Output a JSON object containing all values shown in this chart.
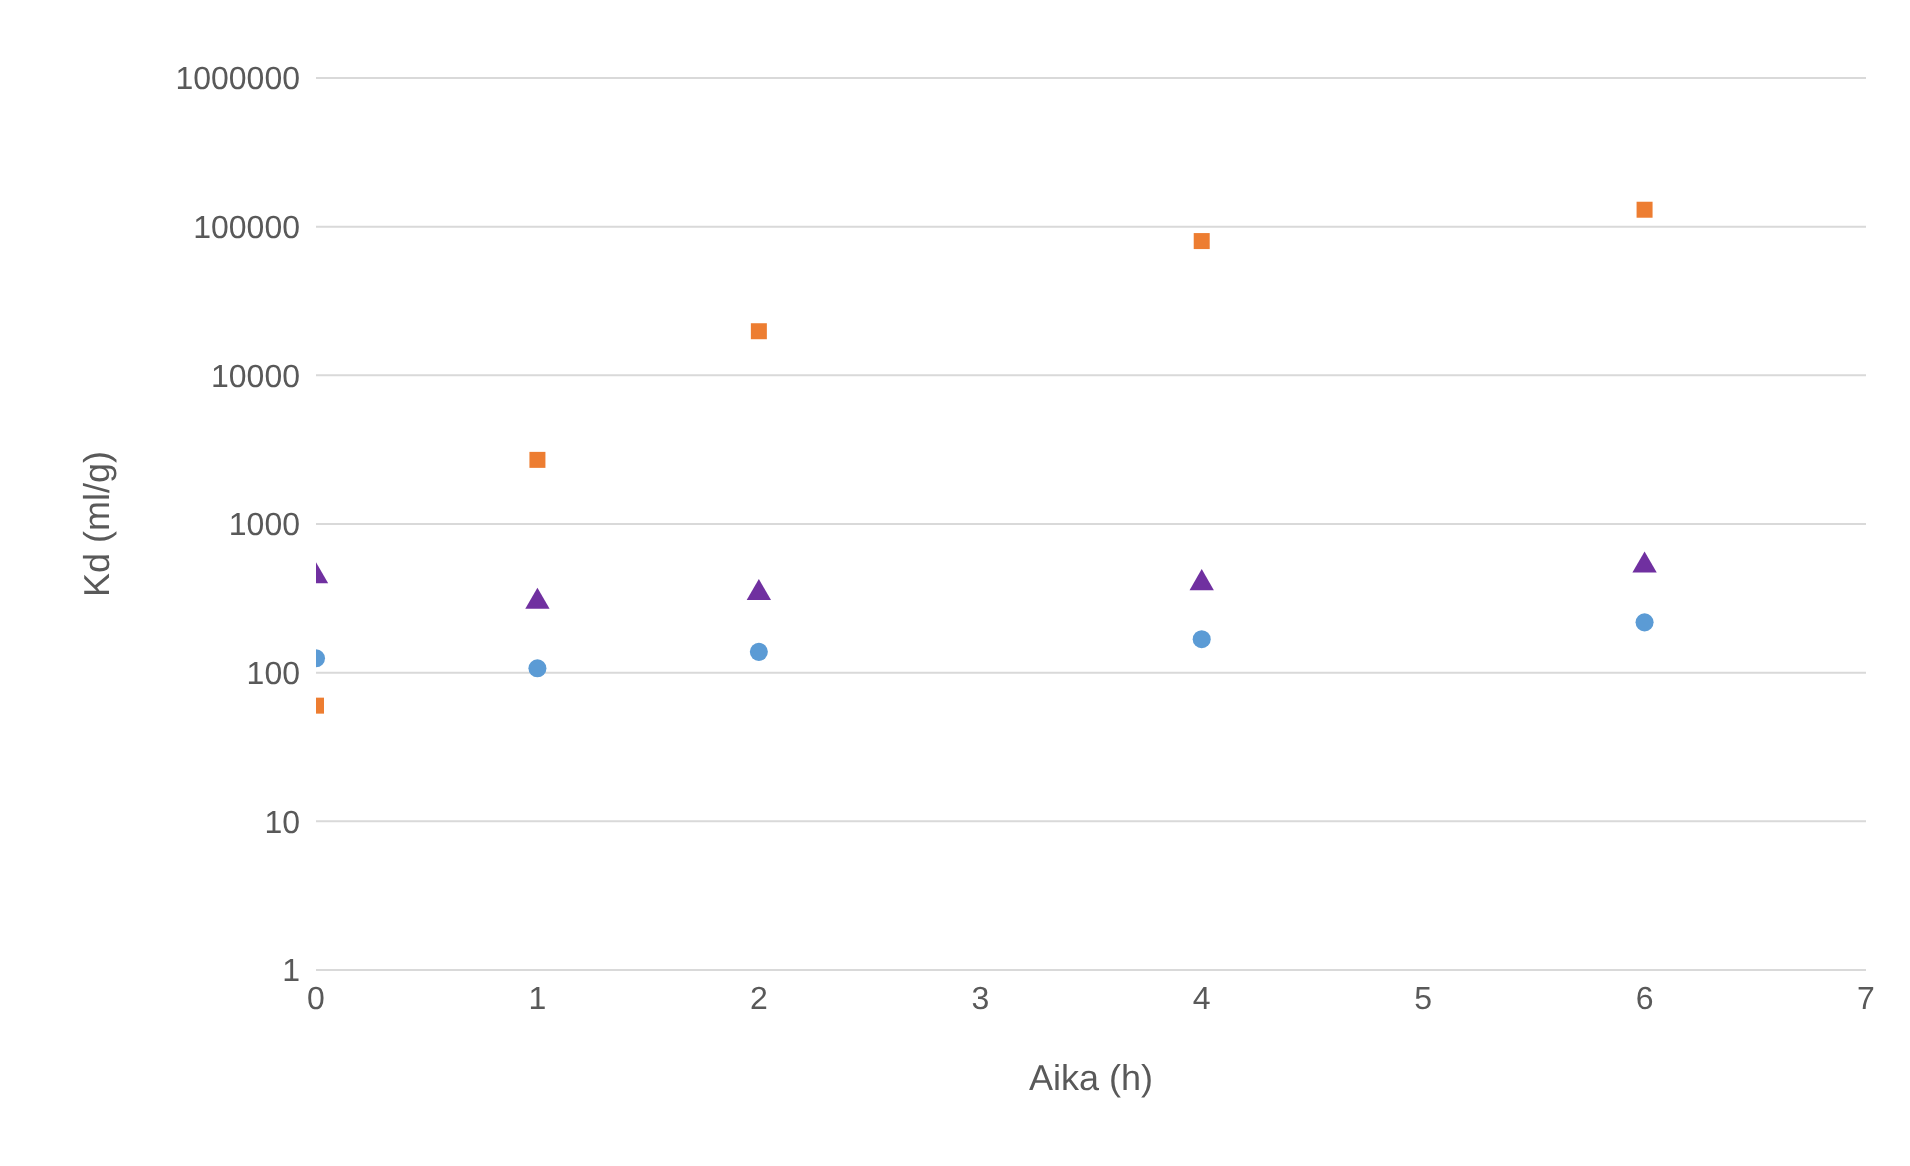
{
  "chart_data": {
    "type": "scatter",
    "xlabel": "Aika (h)",
    "ylabel": "Kd (ml/g)",
    "x": [
      0,
      1,
      2,
      4,
      6
    ],
    "log": "y",
    "grid": "y",
    "xlim": [
      0,
      7
    ],
    "xticks": [
      0,
      1,
      2,
      3,
      4,
      5,
      6,
      7
    ],
    "ylim": [
      1,
      1000000
    ],
    "yticks": [
      1,
      10,
      100,
      1000,
      10000,
      100000,
      1000000
    ],
    "series": [
      {
        "color": "#ed7d31",
        "marker": "square",
        "values": [
          60,
          2700,
          19800,
          80000,
          130000
        ]
      },
      {
        "color": "#5b9bd5",
        "marker": "circle",
        "values": [
          125,
          107,
          138,
          168,
          218
        ]
      },
      {
        "color": "#7030a0",
        "marker": "triangle",
        "values": [
          445,
          300,
          343,
          400,
          525
        ]
      }
    ]
  }
}
